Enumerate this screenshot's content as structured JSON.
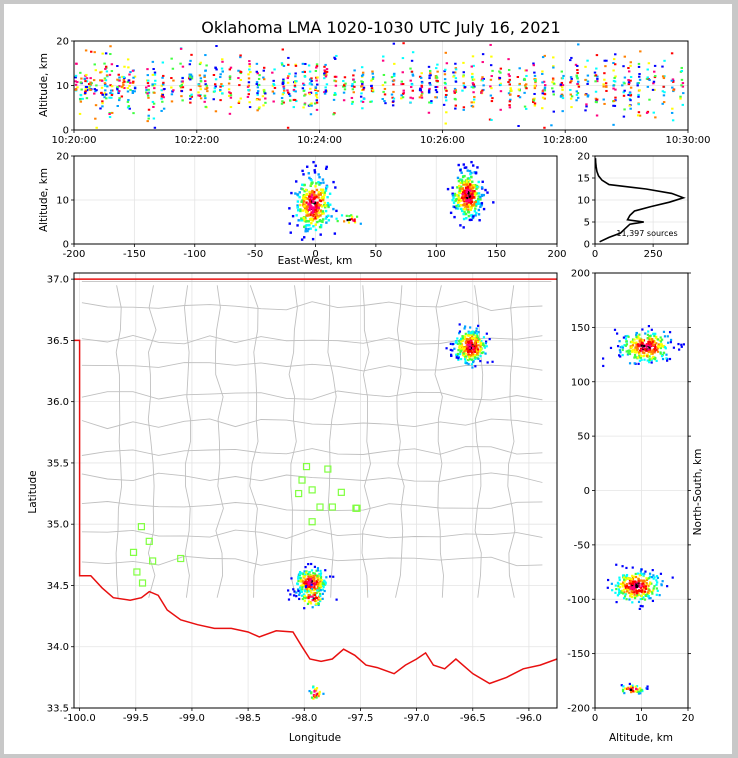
{
  "chart_data": [
    {
      "id": "time-height",
      "type": "heatmap",
      "title": "Oklahoma LMA 1020-1030 UTC July 16, 2021",
      "xlabel": "",
      "ylabel": "Altitude, km",
      "xticks": [
        "10:20:00",
        "10:22:00",
        "10:24:00",
        "10:26:00",
        "10:28:00",
        "10:30:00"
      ],
      "xlim_minutes": [
        0,
        10
      ],
      "ylim": [
        0,
        20
      ],
      "yticks": [
        0,
        10,
        20
      ],
      "grid": true,
      "source_columns_minutes": [
        0.05,
        0.12,
        0.2,
        0.27,
        0.35,
        0.45,
        0.52,
        0.6,
        0.72,
        0.8,
        0.9,
        0.98,
        1.2,
        1.3,
        1.45,
        1.6,
        1.75,
        1.9,
        2.05,
        2.15,
        2.3,
        2.4,
        2.55,
        2.7,
        2.85,
        3.0,
        3.1,
        3.25,
        3.4,
        3.5,
        3.6,
        3.75,
        3.85,
        3.95,
        4.1,
        4.25,
        4.4,
        4.55,
        4.7,
        4.85,
        5.05,
        5.2,
        5.35,
        5.5,
        5.65,
        5.8,
        5.9,
        6.05,
        6.2,
        6.35,
        6.5,
        6.65,
        6.8,
        6.95,
        7.1,
        7.25,
        7.35,
        7.5,
        7.65,
        7.8,
        7.95,
        8.1,
        8.2,
        8.35,
        8.5,
        8.65,
        8.8,
        8.95,
        9.05,
        9.2,
        9.35,
        9.45,
        9.6,
        9.75,
        9.9
      ]
    },
    {
      "id": "east-west-altitude",
      "type": "heatmap",
      "xlabel": "East-West, km",
      "ylabel": "Altitude, km",
      "xlim": [
        -200,
        200
      ],
      "xticks": [
        -200,
        -150,
        -100,
        -50,
        0,
        50,
        100,
        150,
        200
      ],
      "ylim": [
        0,
        20
      ],
      "yticks": [
        0,
        10,
        20
      ],
      "clusters": [
        {
          "x": -2,
          "y": 9,
          "sx": 7,
          "sy": 3.2
        },
        {
          "x": 126,
          "y": 11,
          "sx": 6,
          "sy": 2.6
        },
        {
          "x": 28,
          "y": 5.5,
          "sx": 6,
          "sy": 0.6
        }
      ]
    },
    {
      "id": "altitude-histogram",
      "type": "line",
      "xlim": [
        0,
        400
      ],
      "xticks": [
        0,
        250
      ],
      "ylim": [
        0,
        20
      ],
      "yticks": [
        0,
        5,
        10,
        15,
        20
      ],
      "annotation": "11,397 sources",
      "profile": [
        [
          0.5,
          20
        ],
        [
          1.5,
          60
        ],
        [
          2.5,
          110
        ],
        [
          3.5,
          130
        ],
        [
          4.5,
          150
        ],
        [
          5,
          210
        ],
        [
          5.5,
          140
        ],
        [
          6.5,
          150
        ],
        [
          7.5,
          170
        ],
        [
          8.5,
          240
        ],
        [
          9.5,
          320
        ],
        [
          10.5,
          380
        ],
        [
          11.5,
          330
        ],
        [
          12.5,
          220
        ],
        [
          13.5,
          60
        ],
        [
          14.5,
          30
        ],
        [
          15.5,
          15
        ],
        [
          16.5,
          8
        ],
        [
          17.5,
          5
        ],
        [
          18.5,
          3
        ],
        [
          19.5,
          2
        ]
      ]
    },
    {
      "id": "plan-view",
      "type": "scatter",
      "xlabel": "Longitude",
      "ylabel": "Latitude",
      "xlim": [
        -100.05,
        -95.75
      ],
      "ylim": [
        33.5,
        37.05
      ],
      "xticks": [
        -100.0,
        -99.5,
        -99.0,
        -98.5,
        -98.0,
        -97.5,
        -97.0,
        -96.5,
        -96.0
      ],
      "yticks": [
        33.5,
        34.0,
        34.5,
        35.0,
        35.5,
        36.0,
        36.5,
        37.0
      ],
      "stations": [
        [
          -97.98,
          35.47
        ],
        [
          -97.79,
          35.45
        ],
        [
          -98.02,
          35.36
        ],
        [
          -97.93,
          35.28
        ],
        [
          -97.67,
          35.26
        ],
        [
          -98.05,
          35.25
        ],
        [
          -97.86,
          35.14
        ],
        [
          -97.75,
          35.14
        ],
        [
          -97.54,
          35.13
        ],
        [
          -97.53,
          35.13
        ],
        [
          -97.93,
          35.02
        ],
        [
          -99.45,
          34.98
        ],
        [
          -99.38,
          34.86
        ],
        [
          -99.52,
          34.77
        ],
        [
          -99.35,
          34.7
        ],
        [
          -99.1,
          34.72
        ],
        [
          -99.49,
          34.61
        ],
        [
          -99.44,
          34.52
        ]
      ],
      "clusters": [
        {
          "x": -96.52,
          "y": 36.45,
          "sx": 0.07,
          "sy": 0.07
        },
        {
          "x": -97.94,
          "y": 34.52,
          "sx": 0.07,
          "sy": 0.06
        },
        {
          "x": -97.93,
          "y": 34.4,
          "sx": 0.05,
          "sy": 0.04
        },
        {
          "x": -97.9,
          "y": 33.62,
          "sx": 0.03,
          "sy": 0.03
        }
      ]
    },
    {
      "id": "altitude-north-south",
      "type": "heatmap",
      "xlabel": "Altitude, km",
      "ylabel": "North-South, km",
      "xlim": [
        0,
        20
      ],
      "xticks": [
        0,
        10,
        20
      ],
      "ylim": [
        -200,
        200
      ],
      "yticks": [
        -200,
        -150,
        -100,
        -50,
        0,
        50,
        100,
        150,
        200
      ],
      "clusters": [
        {
          "x": 11,
          "y": 132,
          "sx": 2.8,
          "sy": 7
        },
        {
          "x": 9,
          "y": -88,
          "sx": 2.6,
          "sy": 7
        },
        {
          "x": 8,
          "y": -183,
          "sx": 1.6,
          "sy": 2
        }
      ]
    }
  ],
  "colors": {
    "state_border": "#e81010",
    "county_border": "#c0c0c0",
    "station_marker": "#80ff40",
    "histogram_line": "#000000",
    "heat_scale": [
      "#0000ff",
      "#00a0ff",
      "#00ffff",
      "#40ff40",
      "#ffff00",
      "#ff8000",
      "#ff0000",
      "#ff0080",
      "#000000"
    ]
  }
}
